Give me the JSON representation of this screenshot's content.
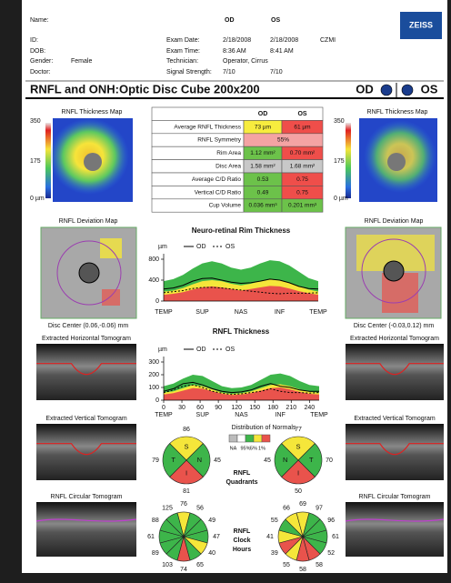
{
  "header": {
    "name_label": "Name:",
    "od": "OD",
    "os": "OS",
    "id_label": "ID:",
    "dob_label": "DOB:",
    "gender_label": "Gender:",
    "gender": "Female",
    "doctor_label": "Doctor:",
    "exam_date_label": "Exam Date:",
    "exam_date_od": "2/18/2008",
    "exam_date_os": "2/18/2008",
    "site": "CZMI",
    "exam_time_label": "Exam Time:",
    "exam_time_od": "8:36 AM",
    "exam_time_os": "8:41 AM",
    "technician_label": "Technician:",
    "technician": "Operator, Cirrus",
    "signal_label": "Signal Strength:",
    "signal_od": "7/10",
    "signal_os": "7/10",
    "logo": "ZEISS"
  },
  "title": {
    "text": "RNFL and ONH:Optic Disc Cube 200x200",
    "od": "OD",
    "os": "OS"
  },
  "thickness_maps": {
    "od_label": "RNFL Thickness Map",
    "os_label": "RNFL Thickness Map",
    "scale": [
      "350",
      "175",
      "0 µm"
    ]
  },
  "table": {
    "columns": [
      "OD",
      "OS"
    ],
    "rows": [
      {
        "label": "Average RNFL Thickness",
        "values": [
          "73 µm",
          "61 µm"
        ],
        "colors": [
          "#f7ec3e",
          "#ef4e4a"
        ]
      },
      {
        "label": "RNFL Symmetry",
        "values": [
          "55%"
        ],
        "colors": [
          "#f4a3a3"
        ]
      },
      {
        "label": "Rim Area",
        "values": [
          "1.12 mm²",
          "0.70 mm²"
        ],
        "colors": [
          "#6cc24a",
          "#ef4e4a"
        ]
      },
      {
        "label": "Disc Area",
        "values": [
          "1.58 mm²",
          "1.68 mm²"
        ],
        "colors": [
          "#c8c8c8",
          "#c8c8c8"
        ]
      },
      {
        "label": "Average C/D Ratio",
        "values": [
          "0.53",
          "0.75"
        ],
        "colors": [
          "#6cc24a",
          "#ef4e4a"
        ]
      },
      {
        "label": "Vertical C/D Ratio",
        "values": [
          "0.49",
          "0.75"
        ],
        "colors": [
          "#6cc24a",
          "#ef4e4a"
        ]
      },
      {
        "label": "Cup Volume",
        "values": [
          "0.036 mm³",
          "0.201 mm³"
        ],
        "colors": [
          "#6cc24a",
          "#6cc24a"
        ]
      }
    ]
  },
  "deviation_maps": {
    "od_label": "RNFL Deviation Map",
    "os_label": "RNFL Deviation Map",
    "od_center": "Disc Center (0.06,-0.06) mm",
    "os_center": "Disc Center (-0.03,0.12) mm"
  },
  "tomograms": {
    "horizontal": "Extracted Horizontal Tomogram",
    "vertical": "Extracted Vertical Tomogram",
    "circular": "RNFL Circular Tomogram"
  },
  "chart_data": [
    {
      "type": "line",
      "title": "Neuro-retinal Rim Thickness",
      "y_label": "µm",
      "categories": [
        "TEMP",
        null,
        null,
        null,
        "SUP",
        null,
        null,
        null,
        "NAS",
        null,
        null,
        null,
        "INF",
        null,
        null,
        null,
        "TEMP"
      ],
      "ylim": [
        0,
        800
      ],
      "yticks": [
        0,
        400,
        800
      ],
      "normal_bands": [
        {
          "color": "#3db54a",
          "values": [
            380,
            420,
            500,
            620,
            720,
            760,
            720,
            640,
            600,
            640,
            720,
            780,
            760,
            680,
            560,
            440,
            380
          ]
        },
        {
          "color": "#f5e63a",
          "values": [
            180,
            200,
            250,
            320,
            380,
            400,
            380,
            330,
            300,
            330,
            380,
            410,
            400,
            350,
            280,
            220,
            180
          ]
        },
        {
          "color": "#e9534c",
          "values": [
            120,
            140,
            170,
            220,
            260,
            280,
            260,
            230,
            200,
            230,
            260,
            290,
            280,
            240,
            190,
            150,
            120
          ]
        }
      ],
      "series": [
        {
          "name": "OD",
          "color": "#000000",
          "dashed": false,
          "values": [
            230,
            250,
            300,
            380,
            430,
            440,
            400,
            360,
            340,
            350,
            380,
            420,
            400,
            350,
            280,
            240,
            230
          ]
        },
        {
          "name": "OS",
          "color": "#000000",
          "dashed": true,
          "values": [
            160,
            180,
            200,
            240,
            260,
            260,
            250,
            230,
            210,
            190,
            170,
            150,
            140,
            150,
            150,
            150,
            160
          ]
        }
      ]
    },
    {
      "type": "line",
      "title": "RNFL Thickness",
      "y_label": "µm",
      "x": [
        0,
        16,
        32,
        48,
        64,
        80,
        96,
        112,
        128,
        144,
        160,
        176,
        192,
        208,
        224,
        240,
        256
      ],
      "xlim": [
        0,
        256
      ],
      "xticks": [
        0,
        30,
        60,
        90,
        120,
        150,
        180,
        210,
        240
      ],
      "x_sections": [
        "TEMP",
        "SUP",
        "NAS",
        "INF",
        "TEMP"
      ],
      "ylim": [
        0,
        300
      ],
      "yticks": [
        0,
        100,
        200,
        300
      ],
      "normal_bands": [
        {
          "color": "#3db54a",
          "values": [
            110,
            130,
            170,
            200,
            190,
            150,
            110,
            95,
            100,
            120,
            160,
            200,
            210,
            190,
            150,
            120,
            110
          ]
        },
        {
          "color": "#f5e63a",
          "values": [
            60,
            70,
            95,
            120,
            110,
            85,
            60,
            50,
            55,
            70,
            95,
            120,
            125,
            110,
            85,
            65,
            60
          ]
        },
        {
          "color": "#e9534c",
          "values": [
            45,
            55,
            75,
            95,
            90,
            70,
            50,
            40,
            45,
            55,
            75,
            95,
            100,
            85,
            65,
            50,
            45
          ]
        }
      ],
      "series": [
        {
          "name": "OD",
          "color": "#000000",
          "dashed": false,
          "values": [
            70,
            90,
            130,
            140,
            120,
            90,
            70,
            60,
            65,
            80,
            110,
            130,
            110,
            100,
            80,
            70,
            70
          ]
        },
        {
          "name": "OS",
          "color": "#000000",
          "dashed": true,
          "values": [
            60,
            80,
            110,
            120,
            100,
            70,
            55,
            45,
            50,
            60,
            70,
            90,
            70,
            60,
            60,
            55,
            60
          ]
        }
      ]
    }
  ],
  "distribution": {
    "title": "Distribution of Normals",
    "labels": [
      "NA",
      "95%",
      "5%",
      "1%"
    ],
    "colors": [
      "#bbbbbb",
      "#ffffff",
      "#3db54a",
      "#f5e63a",
      "#e9534c"
    ]
  },
  "quadrants": {
    "label": [
      "RNFL",
      "Quadrants"
    ],
    "od": {
      "letters": [
        "S",
        "N",
        "I",
        "T"
      ],
      "values": [
        86,
        45,
        81,
        79
      ],
      "colors": [
        "#f5e63a",
        "#3db54a",
        "#e9534c",
        "#3db54a"
      ]
    },
    "os": {
      "letters": [
        "S",
        "T",
        "I",
        "N"
      ],
      "values": [
        77,
        70,
        50,
        45
      ],
      "colors": [
        "#f5e63a",
        "#3db54a",
        "#e9534c",
        "#3db54a"
      ]
    }
  },
  "clock_hours": {
    "label": [
      "RNFL",
      "Clock",
      "Hours"
    ],
    "od": {
      "values": [
        76,
        56,
        49,
        47,
        40,
        65,
        74,
        103,
        89,
        61,
        88,
        125
      ],
      "colors": [
        "#f5e63a",
        "#3db54a",
        "#3db54a",
        "#3db54a",
        "#f5e63a",
        "#3db54a",
        "#e9534c",
        "#3db54a",
        "#3db54a",
        "#3db54a",
        "#3db54a",
        "#3db54a"
      ]
    },
    "os": {
      "values": [
        69,
        97,
        96,
        61,
        52,
        58,
        58,
        55,
        39,
        41,
        55,
        66
      ],
      "colors": [
        "#f5e63a",
        "#3db54a",
        "#3db54a",
        "#3db54a",
        "#3db54a",
        "#e9534c",
        "#e9534c",
        "#f5e63a",
        "#e9534c",
        "#f5e63a",
        "#3db54a",
        "#f5e63a"
      ]
    }
  }
}
